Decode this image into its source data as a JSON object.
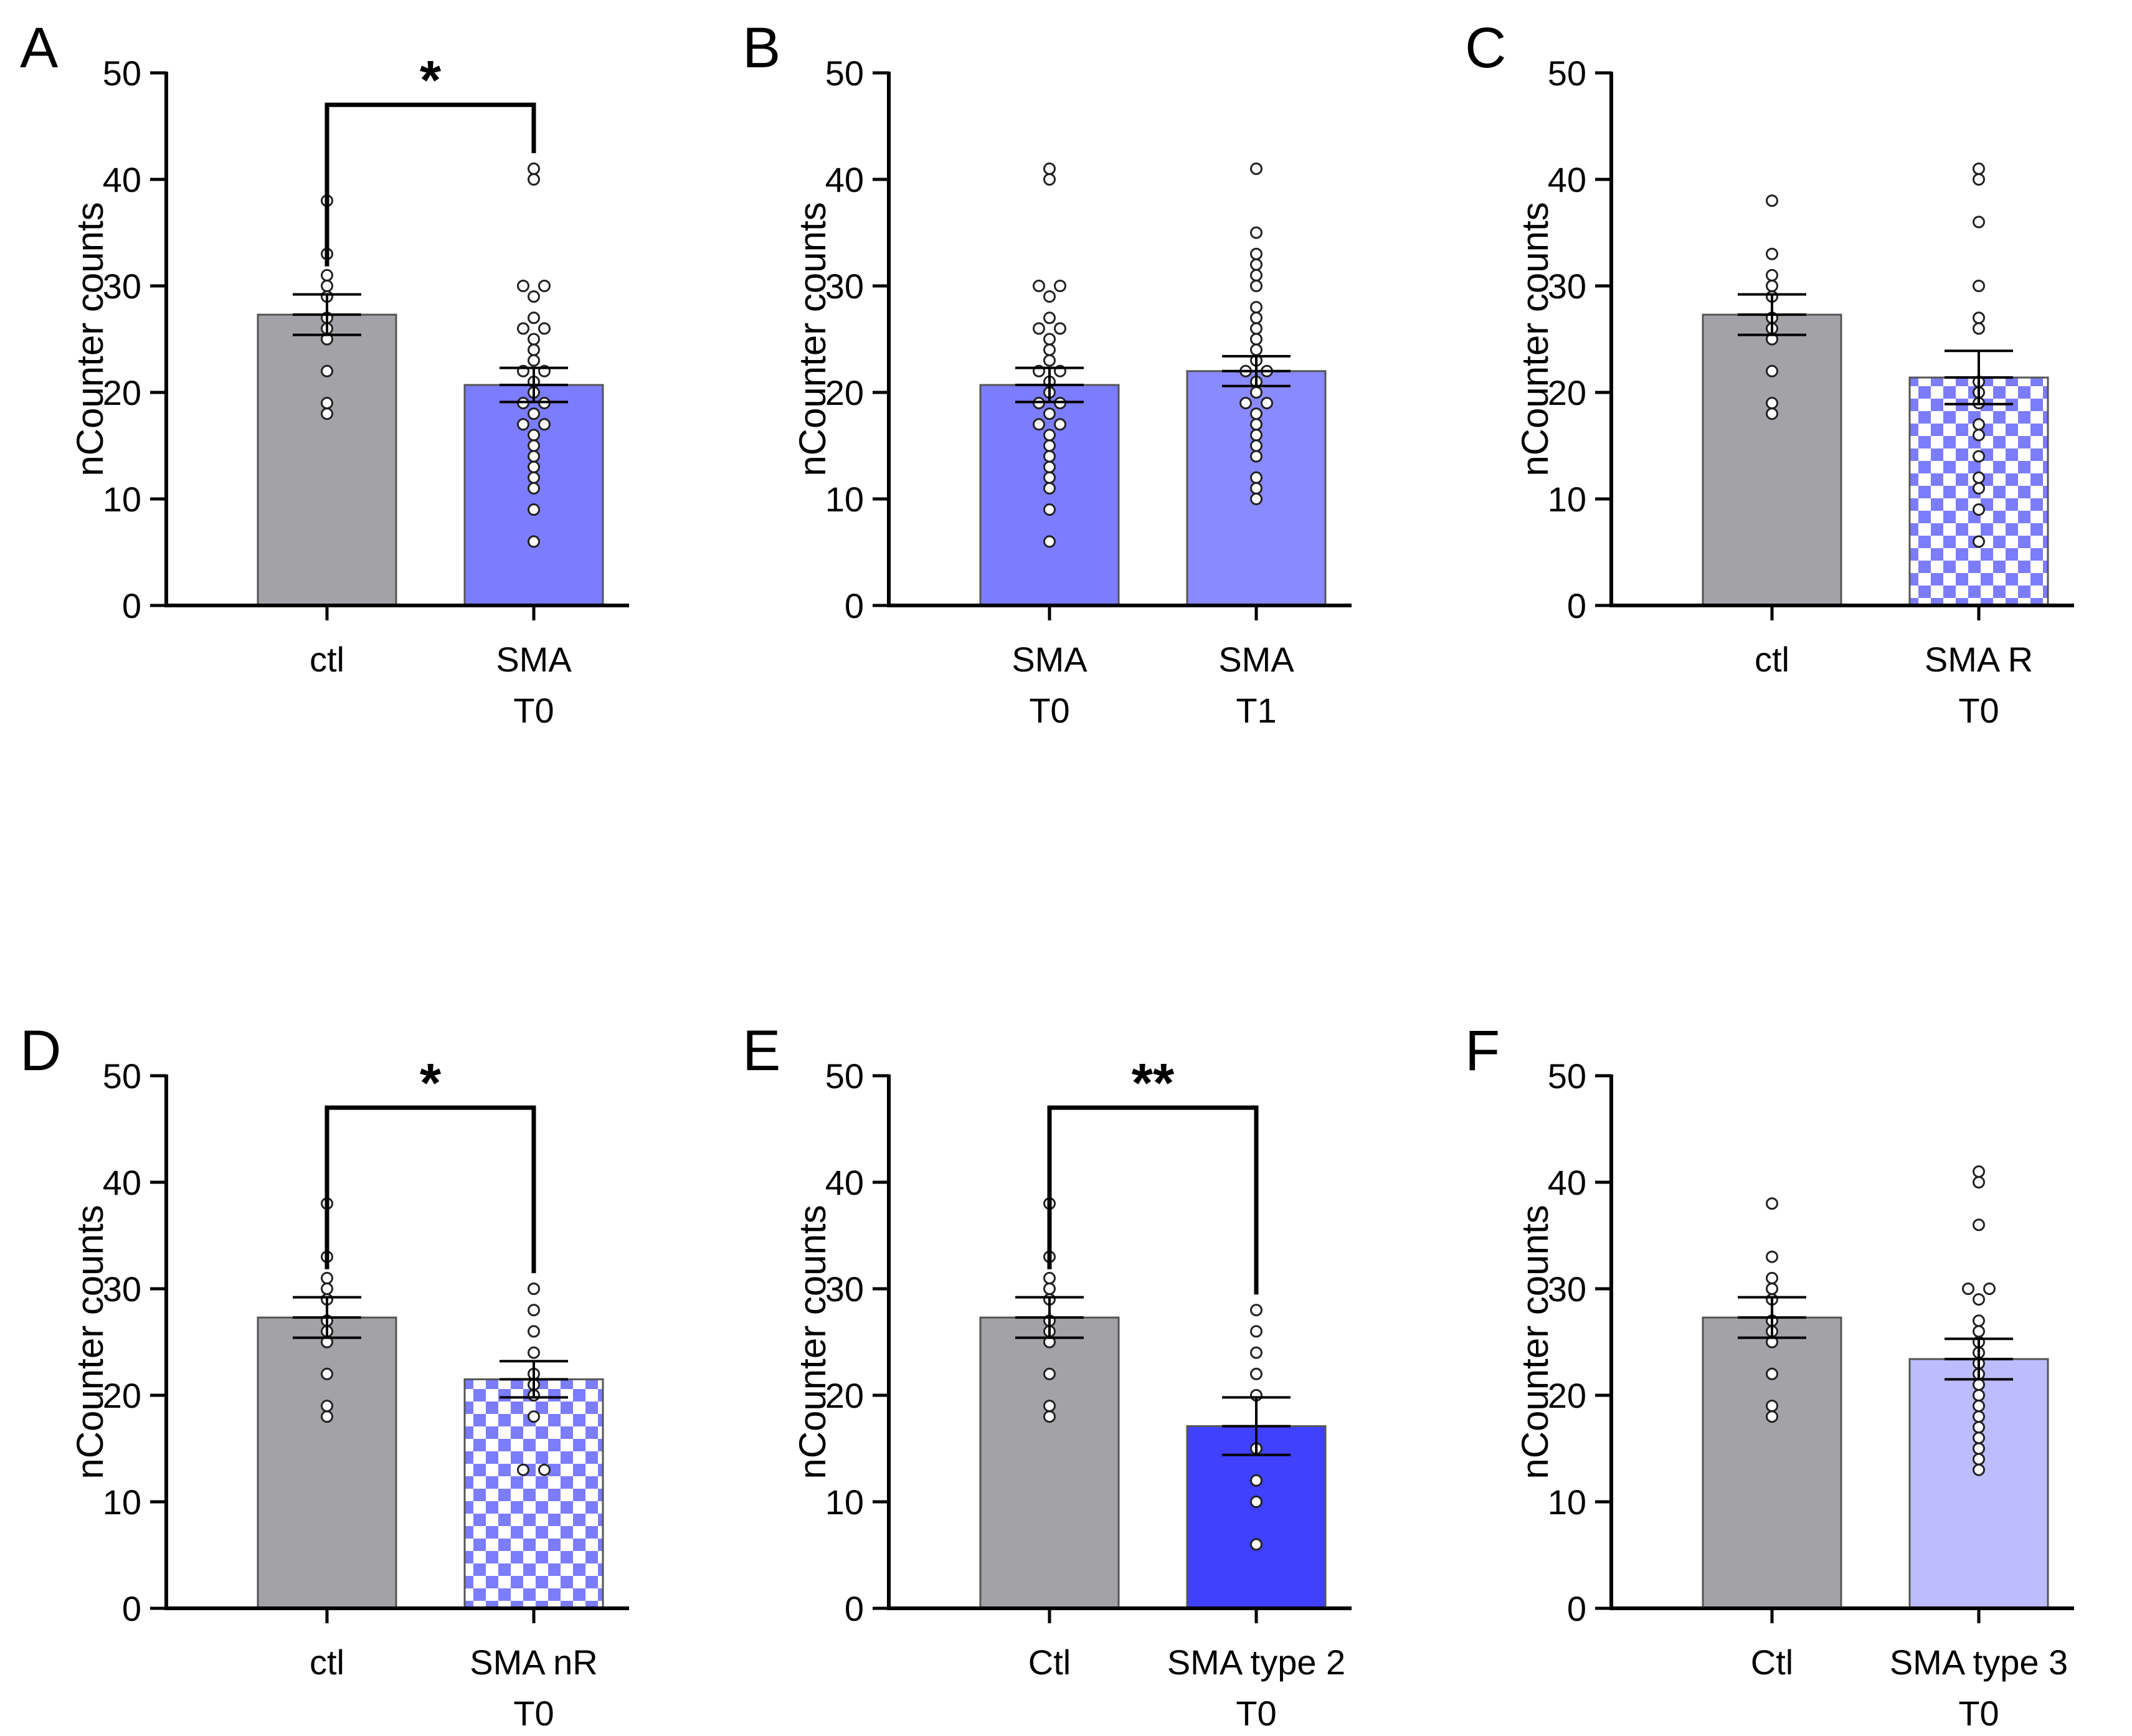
{
  "chart_data": [
    {
      "panel": "A",
      "type": "bar",
      "ylabel": "nCounter counts",
      "ylim": [
        0,
        50
      ],
      "yticks": [
        "0",
        "10",
        "20",
        "30",
        "40",
        "50"
      ],
      "bars": [
        {
          "label": [
            "ctl"
          ],
          "value": 27.3,
          "sem": 1.9,
          "fill": "#a3a3a7",
          "pattern": "solid",
          "points": [
            18,
            19,
            22,
            25,
            26,
            27,
            29,
            30,
            31,
            33,
            38
          ]
        },
        {
          "label": [
            "SMA",
            "T0"
          ],
          "value": 20.7,
          "sem": 1.6,
          "fill": "#7c7cff",
          "pattern": "solid",
          "points": [
            6,
            9,
            11,
            12,
            13,
            14,
            15,
            16,
            17,
            17,
            18,
            19,
            19,
            20,
            21,
            22,
            22,
            23,
            24,
            25,
            26,
            26,
            27,
            29,
            30,
            30,
            40,
            41
          ]
        }
      ],
      "significance": "*"
    },
    {
      "panel": "B",
      "type": "bar",
      "ylabel": "nCounter counts",
      "ylim": [
        0,
        50
      ],
      "yticks": [
        "0",
        "10",
        "20",
        "30",
        "40",
        "50"
      ],
      "bars": [
        {
          "label": [
            "SMA",
            "T0"
          ],
          "value": 20.7,
          "sem": 1.6,
          "fill": "#7c7cff",
          "pattern": "solid",
          "points": [
            6,
            9,
            11,
            12,
            13,
            14,
            15,
            16,
            17,
            17,
            18,
            19,
            19,
            20,
            21,
            22,
            22,
            23,
            24,
            25,
            26,
            26,
            27,
            29,
            30,
            30,
            40,
            41
          ]
        },
        {
          "label": [
            "SMA",
            "T1"
          ],
          "value": 22.0,
          "sem": 1.4,
          "fill": "#8a8aff",
          "pattern": "solid",
          "points": [
            10,
            11,
            12,
            14,
            15,
            16,
            17,
            18,
            19,
            19,
            20,
            21,
            22,
            22,
            23,
            24,
            25,
            26,
            27,
            28,
            30,
            31,
            32,
            33,
            35,
            41
          ]
        }
      ],
      "significance": ""
    },
    {
      "panel": "C",
      "type": "bar",
      "ylabel": "nCounter counts",
      "ylim": [
        0,
        50
      ],
      "yticks": [
        "0",
        "10",
        "20",
        "30",
        "40",
        "50"
      ],
      "bars": [
        {
          "label": [
            "ctl"
          ],
          "value": 27.3,
          "sem": 1.9,
          "fill": "#a3a3a7",
          "pattern": "solid",
          "points": [
            18,
            19,
            22,
            25,
            26,
            27,
            29,
            30,
            31,
            33,
            38
          ]
        },
        {
          "label": [
            "SMA R",
            "T0"
          ],
          "value": 21.4,
          "sem": 2.5,
          "fill": "#7c7cff",
          "pattern": "checker",
          "points": [
            6,
            9,
            11,
            12,
            14,
            16,
            17,
            19,
            20,
            21,
            26,
            27,
            30,
            36,
            40,
            41
          ]
        }
      ],
      "significance": ""
    },
    {
      "panel": "D",
      "type": "bar",
      "ylabel": "nCounter counts",
      "ylim": [
        0,
        50
      ],
      "yticks": [
        "0",
        "10",
        "20",
        "30",
        "40",
        "50"
      ],
      "bars": [
        {
          "label": [
            "ctl"
          ],
          "value": 27.3,
          "sem": 1.9,
          "fill": "#a3a3a7",
          "pattern": "solid",
          "points": [
            18,
            19,
            22,
            25,
            26,
            27,
            29,
            30,
            31,
            33,
            38
          ]
        },
        {
          "label": [
            "SMA nR",
            "T0"
          ],
          "value": 21.5,
          "sem": 1.7,
          "fill": "#7c7cff",
          "pattern": "checker",
          "points": [
            13,
            13,
            18,
            20,
            21,
            22,
            24,
            26,
            28,
            30
          ]
        }
      ],
      "significance": "*"
    },
    {
      "panel": "E",
      "type": "bar",
      "ylabel": "nCounter counts",
      "ylim": [
        0,
        50
      ],
      "yticks": [
        "0",
        "10",
        "20",
        "30",
        "40",
        "50"
      ],
      "bars": [
        {
          "label": [
            "Ctl"
          ],
          "value": 27.3,
          "sem": 1.9,
          "fill": "#a3a3a7",
          "pattern": "solid",
          "points": [
            18,
            19,
            22,
            25,
            26,
            27,
            29,
            30,
            31,
            33,
            38
          ]
        },
        {
          "label": [
            "SMA type 2",
            "T0"
          ],
          "value": 17.1,
          "sem": 2.7,
          "fill": "#4040ff",
          "pattern": "solid",
          "points": [
            6,
            10,
            12,
            15,
            20,
            22,
            24,
            26,
            28
          ]
        }
      ],
      "significance": "**"
    },
    {
      "panel": "F",
      "type": "bar",
      "ylabel": "nCounter counts",
      "ylim": [
        0,
        50
      ],
      "yticks": [
        "0",
        "10",
        "20",
        "30",
        "40",
        "50"
      ],
      "bars": [
        {
          "label": [
            "Ctl"
          ],
          "value": 27.3,
          "sem": 1.9,
          "fill": "#a3a3a7",
          "pattern": "solid",
          "points": [
            18,
            19,
            22,
            25,
            26,
            27,
            29,
            30,
            31,
            33,
            38
          ]
        },
        {
          "label": [
            "SMA type 3",
            "T0"
          ],
          "value": 23.4,
          "sem": 1.9,
          "fill": "#bcbcff",
          "pattern": "solid",
          "points": [
            13,
            14,
            15,
            16,
            17,
            18,
            19,
            20,
            21,
            22,
            23,
            24,
            25,
            26,
            27,
            29,
            30,
            30,
            36,
            40,
            41
          ]
        }
      ],
      "significance": ""
    }
  ]
}
